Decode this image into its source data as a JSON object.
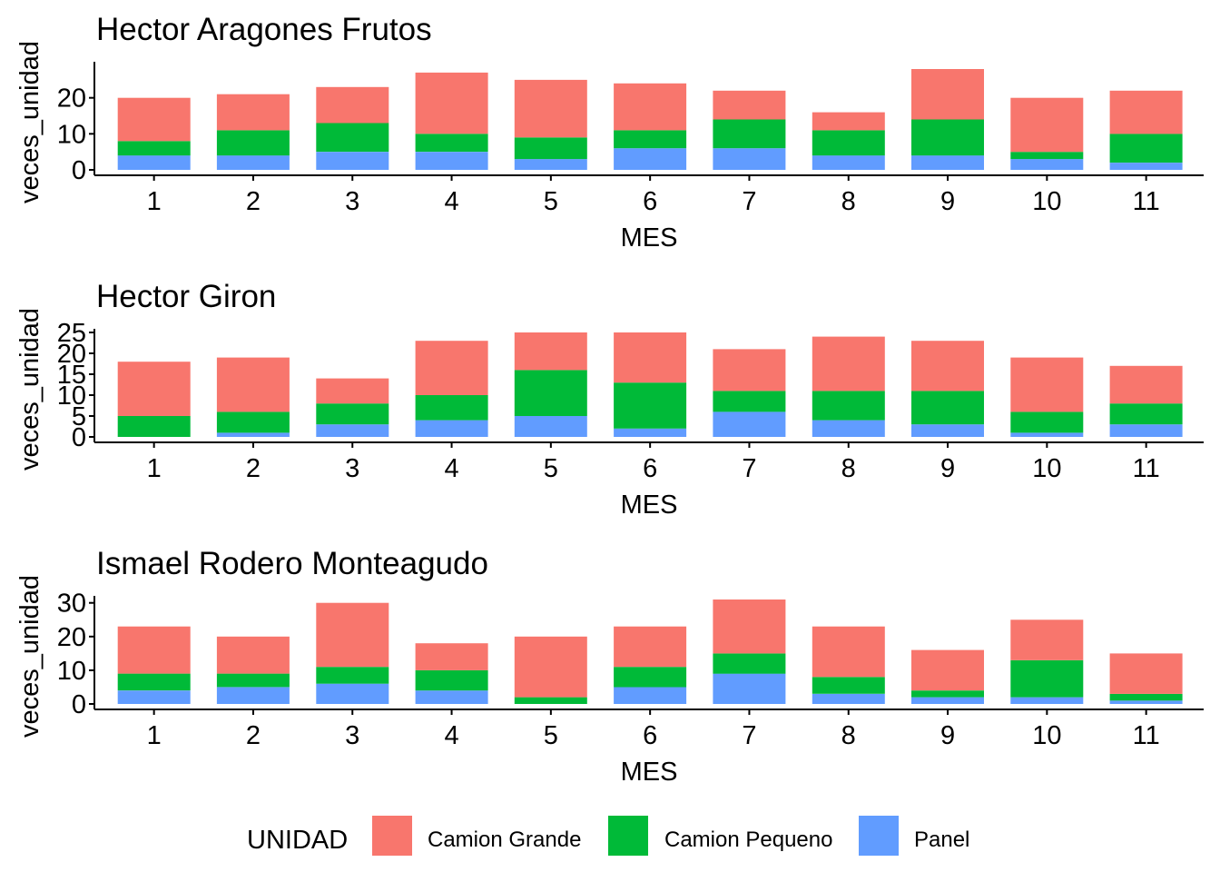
{
  "chart_data": [
    {
      "type": "bar",
      "stacked": true,
      "title": "Hector Aragones Frutos",
      "xlabel": "MES",
      "ylabel": "veces_unidad",
      "categories": [
        "1",
        "2",
        "3",
        "4",
        "5",
        "6",
        "7",
        "8",
        "9",
        "10",
        "11"
      ],
      "ylim": [
        0,
        29
      ],
      "yticks": [
        0,
        10,
        20
      ],
      "series": [
        {
          "name": "Panel",
          "values": [
            4,
            4,
            5,
            5,
            3,
            6,
            6,
            4,
            4,
            3,
            2
          ]
        },
        {
          "name": "Camion Pequeno",
          "values": [
            4,
            7,
            8,
            5,
            6,
            5,
            8,
            7,
            10,
            2,
            8
          ]
        },
        {
          "name": "Camion Grande",
          "values": [
            12,
            10,
            10,
            17,
            16,
            13,
            8,
            5,
            14,
            15,
            12
          ]
        }
      ]
    },
    {
      "type": "bar",
      "stacked": true,
      "title": "Hector Giron",
      "xlabel": "MES",
      "ylabel": "veces_unidad",
      "categories": [
        "1",
        "2",
        "3",
        "4",
        "5",
        "6",
        "7",
        "8",
        "9",
        "10",
        "11"
      ],
      "ylim": [
        0,
        25
      ],
      "yticks": [
        0,
        5,
        10,
        15,
        20,
        25
      ],
      "series": [
        {
          "name": "Panel",
          "values": [
            0,
            1,
            3,
            4,
            5,
            2,
            6,
            4,
            3,
            1,
            3
          ]
        },
        {
          "name": "Camion Pequeno",
          "values": [
            5,
            5,
            5,
            6,
            11,
            11,
            5,
            7,
            8,
            5,
            5
          ]
        },
        {
          "name": "Camion Grande",
          "values": [
            13,
            13,
            6,
            13,
            9,
            12,
            10,
            13,
            12,
            13,
            9
          ]
        }
      ]
    },
    {
      "type": "bar",
      "stacked": true,
      "title": "Ismael Rodero Monteagudo",
      "xlabel": "MES",
      "ylabel": "veces_unidad",
      "categories": [
        "1",
        "2",
        "3",
        "4",
        "5",
        "6",
        "7",
        "8",
        "9",
        "10",
        "11"
      ],
      "ylim": [
        0,
        31
      ],
      "yticks": [
        0,
        10,
        20,
        30
      ],
      "series": [
        {
          "name": "Panel",
          "values": [
            4,
            5,
            6,
            4,
            0,
            5,
            9,
            3,
            2,
            2,
            1
          ]
        },
        {
          "name": "Camion Pequeno",
          "values": [
            5,
            4,
            5,
            6,
            2,
            6,
            6,
            5,
            2,
            11,
            2
          ]
        },
        {
          "name": "Camion Grande",
          "values": [
            14,
            11,
            19,
            8,
            18,
            12,
            16,
            15,
            12,
            12,
            12
          ]
        }
      ]
    }
  ],
  "legend": {
    "title": "UNIDAD",
    "position": "bottom",
    "items": [
      {
        "label": "Camion Grande",
        "color": "#F8766D"
      },
      {
        "label": "Camion Pequeno",
        "color": "#00BA38"
      },
      {
        "label": "Panel",
        "color": "#619CFF"
      }
    ]
  },
  "colors": {
    "Camion Grande": "#F8766D",
    "Camion Pequeno": "#00BA38",
    "Panel": "#619CFF"
  }
}
